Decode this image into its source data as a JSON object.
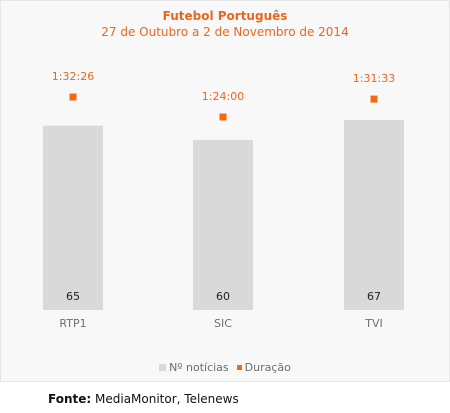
{
  "chart_data": {
    "type": "bar",
    "title": "Futebol Português",
    "subtitle": "27 de Outubro a 2 de Novembro de 2014",
    "categories": [
      "RTP1",
      "SIC",
      "TVI"
    ],
    "series": [
      {
        "name": "Nº notícias",
        "type": "bar",
        "color": "#d9d9d9",
        "values": [
          65,
          60,
          67
        ],
        "data_labels": [
          "65",
          "60",
          "67"
        ]
      },
      {
        "name": "Duração",
        "type": "marker",
        "color": "#f26a10",
        "values": [
          5546,
          5040,
          5493
        ],
        "data_labels": [
          "1:32:26",
          "1:24:00",
          "1:31:33"
        ]
      }
    ],
    "grid": false,
    "legend_position": "bottom"
  },
  "footer": {
    "label": "Fonte:",
    "text": "MediaMonitor, Telenews"
  }
}
